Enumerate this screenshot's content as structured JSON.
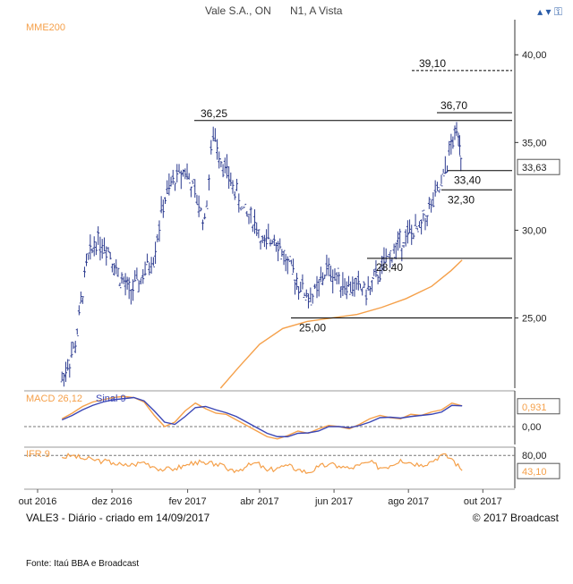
{
  "header": {
    "title": "Vale S.A., ON",
    "market": "N1, A Vista",
    "ma_label": "MME200"
  },
  "controls": {
    "zoom_label": "▴ ▾",
    "zoom_icon": "zoom-icon",
    "lock_icon": "lock-icon",
    "lock_glyph": "⚿"
  },
  "footer": {
    "left": "VALE3 - Diário - criado em 14/09/2017",
    "right": "© 2017 Broadcast",
    "source": "Fonte: Itaú BBA e Broadcast"
  },
  "colors": {
    "price": "#2b3a8f",
    "ma": "#f5a04a",
    "macd": "#f5a04a",
    "signal": "#3a46b5",
    "ifr": "#f5a04a",
    "lines": "#000000"
  },
  "chart_data": [
    {
      "type": "line",
      "panel": "price",
      "title": "",
      "ylabel": "",
      "ylim": [
        21.0,
        42.0
      ],
      "yticks": [
        "40,00",
        "35,00",
        "30,00",
        "25,00"
      ],
      "ytick_values": [
        40,
        35,
        30,
        25
      ],
      "xtick_labels": [
        "out 2016",
        "dez 2016",
        "fev 2017",
        "abr 2017",
        "jun 2017",
        "ago 2017",
        "out 2017"
      ],
      "series": [
        {
          "name": "",
          "style": "ohlc",
          "x": [
            "2016-10-21",
            "2016-11-01",
            "2016-11-10",
            "2016-11-18",
            "2016-11-28",
            "2016-12-06",
            "2016-12-15",
            "2016-12-23",
            "2017-01-04",
            "2017-01-12",
            "2017-01-20",
            "2017-01-30",
            "2017-02-07",
            "2017-02-15",
            "2017-02-22",
            "2017-03-02",
            "2017-03-10",
            "2017-03-20",
            "2017-03-28",
            "2017-04-05",
            "2017-04-13",
            "2017-04-24",
            "2017-05-03",
            "2017-05-11",
            "2017-05-18",
            "2017-05-26",
            "2017-06-05",
            "2017-06-13",
            "2017-06-21",
            "2017-06-29",
            "2017-07-07",
            "2017-07-17",
            "2017-07-25",
            "2017-08-02",
            "2017-08-10",
            "2017-08-18",
            "2017-08-28",
            "2017-09-05",
            "2017-09-11",
            "2017-09-14"
          ],
          "values": [
            21.5,
            23.5,
            28.0,
            29.5,
            29.0,
            27.5,
            26.5,
            27.0,
            28.5,
            31.5,
            32.8,
            33.5,
            32.0,
            30.5,
            35.5,
            33.8,
            32.5,
            31.0,
            30.5,
            29.0,
            29.8,
            28.0,
            27.0,
            26.2,
            26.5,
            27.8,
            27.2,
            26.8,
            26.8,
            26.5,
            27.5,
            28.5,
            29.3,
            29.8,
            30.0,
            31.2,
            32.5,
            34.8,
            35.8,
            33.6
          ]
        },
        {
          "name": "MME200",
          "x": [
            "2017-02-28",
            "2017-03-15",
            "2017-04-01",
            "2017-04-20",
            "2017-05-10",
            "2017-05-30",
            "2017-06-20",
            "2017-07-10",
            "2017-07-30",
            "2017-08-20",
            "2017-09-05",
            "2017-09-14"
          ],
          "values": [
            21.0,
            22.2,
            23.5,
            24.4,
            24.8,
            25.0,
            25.2,
            25.6,
            26.1,
            26.8,
            27.7,
            28.3
          ]
        }
      ],
      "annotations": [
        {
          "label": "39,10",
          "value": 39.1,
          "style": "dashed"
        },
        {
          "label": "36,70",
          "value": 36.7,
          "style": "solid"
        },
        {
          "label": "36,25",
          "value": 36.25,
          "style": "solid"
        },
        {
          "label": "33,40",
          "value": 33.4,
          "style": "solid"
        },
        {
          "label": "32,30",
          "value": 32.3,
          "style": "solid"
        },
        {
          "label": "28,40",
          "value": 28.4,
          "style": "solid"
        },
        {
          "label": "25,00",
          "value": 25.0,
          "style": "solid"
        }
      ],
      "last_value_label": "33,63",
      "last_value": 33.63
    },
    {
      "type": "line",
      "panel": "macd",
      "title": "MACD 26,12",
      "signal_title": "Sinal 9",
      "ylim": [
        -0.8,
        1.6
      ],
      "yticks": [
        "0,00"
      ],
      "ytick_values": [
        0
      ],
      "last_value_label": "0,931",
      "series": [
        {
          "name": "MACD 26,12",
          "values": [
            0.35,
            0.6,
            0.9,
            1.1,
            1.2,
            1.3,
            1.35,
            1.3,
            1.1,
            0.5,
            0.0,
            0.2,
            0.7,
            1.05,
            0.8,
            0.6,
            0.55,
            0.3,
            0.05,
            -0.2,
            -0.45,
            -0.55,
            -0.4,
            -0.2,
            -0.3,
            -0.1,
            0.05,
            0.0,
            -0.1,
            0.1,
            0.35,
            0.5,
            0.4,
            0.35,
            0.55,
            0.5,
            0.65,
            0.75,
            1.05,
            0.93
          ]
        },
        {
          "name": "Sinal 9",
          "values": [
            0.3,
            0.5,
            0.75,
            0.95,
            1.1,
            1.2,
            1.25,
            1.3,
            1.15,
            0.7,
            0.2,
            0.1,
            0.45,
            0.85,
            0.9,
            0.75,
            0.62,
            0.45,
            0.2,
            -0.05,
            -0.3,
            -0.45,
            -0.45,
            -0.3,
            -0.28,
            -0.2,
            0.0,
            0.0,
            -0.05,
            0.05,
            0.2,
            0.4,
            0.42,
            0.38,
            0.45,
            0.5,
            0.55,
            0.65,
            0.95,
            0.93
          ]
        }
      ]
    },
    {
      "type": "line",
      "panel": "ifr",
      "title": "IFR 9",
      "ylim": [
        0,
        100
      ],
      "yticks": [
        "80,00"
      ],
      "ytick_values": [
        80
      ],
      "last_value_label": "43,10",
      "series": [
        {
          "name": "IFR 9",
          "values": [
            75,
            80,
            72,
            70,
            66,
            62,
            55,
            58,
            64,
            52,
            45,
            48,
            55,
            65,
            58,
            60,
            48,
            44,
            53,
            62,
            42,
            50,
            55,
            46,
            38,
            52,
            58,
            54,
            48,
            56,
            64,
            50,
            55,
            70,
            62,
            58,
            65,
            82,
            72,
            43.1
          ]
        }
      ]
    }
  ]
}
